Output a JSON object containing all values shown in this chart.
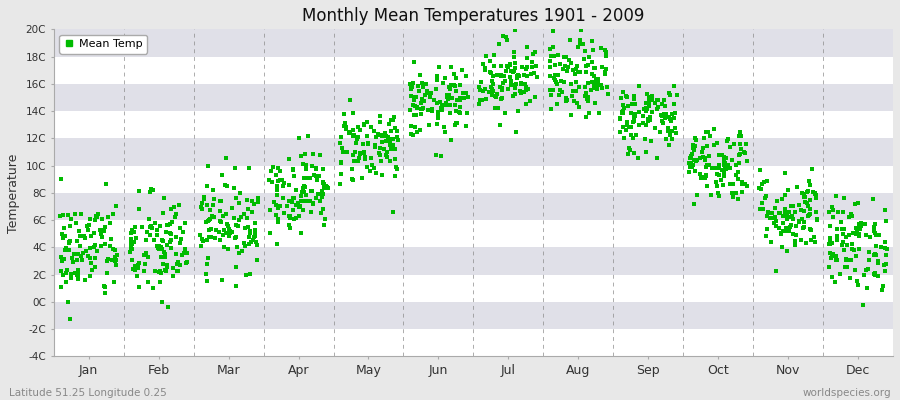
{
  "title": "Monthly Mean Temperatures 1901 - 2009",
  "ylabel": "Temperature",
  "bottom_left": "Latitude 51.25 Longitude 0.25",
  "bottom_right": "worldspecies.org",
  "legend_label": "Mean Temp",
  "marker_color": "#00BB00",
  "marker_size": 3,
  "ylim": [
    -4,
    20
  ],
  "yticks": [
    -4,
    -2,
    0,
    2,
    4,
    6,
    8,
    10,
    12,
    14,
    16,
    18,
    20
  ],
  "ytick_labels": [
    "-4C",
    "-2C",
    "0C",
    "2C",
    "4C",
    "6C",
    "8C",
    "10C",
    "12C",
    "14C",
    "16C",
    "18C",
    "20C"
  ],
  "months": [
    "Jan",
    "Feb",
    "Mar",
    "Apr",
    "May",
    "Jun",
    "Jul",
    "Aug",
    "Sep",
    "Oct",
    "Nov",
    "Dec"
  ],
  "month_means": [
    3.8,
    3.9,
    5.8,
    8.2,
    11.5,
    14.5,
    16.5,
    16.3,
    13.5,
    10.2,
    6.5,
    4.2
  ],
  "month_stds": [
    1.9,
    2.0,
    1.7,
    1.5,
    1.4,
    1.3,
    1.4,
    1.4,
    1.3,
    1.4,
    1.5,
    1.7
  ],
  "num_years": 109,
  "seed": 42,
  "fig_bg_color": "#E8E8E8",
  "plot_bg_color": "#FFFFFF",
  "band_color_light": "#FFFFFF",
  "band_color_dark": "#E0E0E8",
  "grid_color": "#888888",
  "spine_color": "#AAAAAA",
  "tick_label_color": "#333333",
  "bottom_text_color": "#888888"
}
